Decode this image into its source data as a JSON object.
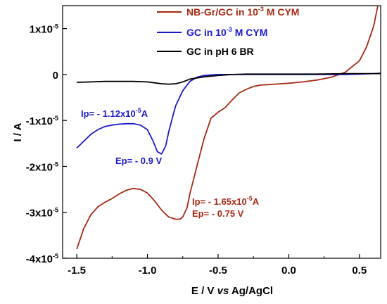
{
  "chart_data": {
    "type": "line",
    "xlabel": {
      "pre": "E / V ",
      "italic": "vs",
      "post": " Ag/AgCl"
    },
    "ylabel": "I / A",
    "xlim": [
      -1.6,
      0.65
    ],
    "ylim": [
      -4e-05,
      1.5e-05
    ],
    "x_ticks": [
      {
        "value": -1.5,
        "label": "-1.5"
      },
      {
        "value": -1.0,
        "label": "-1.0"
      },
      {
        "value": -0.5,
        "label": "-0.5"
      },
      {
        "value": 0.0,
        "label": "0.0"
      },
      {
        "value": 0.5,
        "label": "0.5"
      }
    ],
    "y_ticks": [
      {
        "value": 1e-05,
        "mant": "1x10",
        "exp": "-5"
      },
      {
        "value": 0,
        "mant": "0",
        "exp": ""
      },
      {
        "value": -1e-05,
        "mant": "-1x10",
        "exp": "-5"
      },
      {
        "value": -2e-05,
        "mant": "-2x10",
        "exp": "-5"
      },
      {
        "value": -3e-05,
        "mant": "-3x10",
        "exp": "-5"
      },
      {
        "value": -4e-05,
        "mant": "-4x10",
        "exp": "-5"
      }
    ],
    "grid": false,
    "legend_position": "top-right",
    "series": [
      {
        "name": {
          "pre": "NB-Gr/GC in 10",
          "sup": "-3",
          "post": " M CYM"
        },
        "color": "#a52a14",
        "x": [
          -1.5,
          -1.45,
          -1.4,
          -1.35,
          -1.3,
          -1.25,
          -1.2,
          -1.15,
          -1.1,
          -1.05,
          -1.0,
          -0.95,
          -0.9,
          -0.85,
          -0.8,
          -0.77,
          -0.75,
          -0.72,
          -0.7,
          -0.65,
          -0.6,
          -0.55,
          -0.5,
          -0.45,
          -0.4,
          -0.35,
          -0.3,
          -0.25,
          -0.2,
          -0.15,
          -0.1,
          0.0,
          0.1,
          0.2,
          0.3,
          0.4,
          0.5,
          0.55,
          0.6,
          0.63
        ],
        "y": [
          -3.8e-05,
          -3.35e-05,
          -3.05e-05,
          -2.88e-05,
          -2.78e-05,
          -2.7e-05,
          -2.6e-05,
          -2.52e-05,
          -2.48e-05,
          -2.5e-05,
          -2.58e-05,
          -2.75e-05,
          -2.95e-05,
          -3.1e-05,
          -3.15e-05,
          -3.15e-05,
          -3.1e-05,
          -2.9e-05,
          -2.6e-05,
          -2e-05,
          -1.4e-05,
          -9.5e-06,
          -8.2e-06,
          -7.2e-06,
          -5.5e-06,
          -4e-06,
          -3.2e-06,
          -2.6e-06,
          -2.3e-06,
          -2.2e-06,
          -2.1e-06,
          -1.9e-06,
          -1.6e-06,
          -1.2e-06,
          -6e-07,
          5e-07,
          3e-06,
          6e-06,
          1.05e-05,
          1.5e-05
        ]
      },
      {
        "name": {
          "pre": "GC in 10",
          "sup": "-3",
          "post": " M CYM"
        },
        "color": "#1a1acc",
        "x": [
          -1.5,
          -1.45,
          -1.4,
          -1.35,
          -1.3,
          -1.25,
          -1.2,
          -1.15,
          -1.1,
          -1.05,
          -1.0,
          -0.96,
          -0.93,
          -0.9,
          -0.87,
          -0.85,
          -0.82,
          -0.8,
          -0.75,
          -0.7,
          -0.65,
          -0.6,
          -0.5,
          -0.4,
          -0.3,
          -0.2,
          -0.1,
          0.0,
          0.2,
          0.4,
          0.6,
          0.65
        ],
        "y": [
          -1.6e-05,
          -1.45e-05,
          -1.3e-05,
          -1.2e-05,
          -1.13e-05,
          -1.1e-05,
          -1.08e-05,
          -1.07e-05,
          -1.07e-05,
          -1.1e-05,
          -1.2e-05,
          -1.45e-05,
          -1.68e-05,
          -1.73e-05,
          -1.55e-05,
          -1.25e-05,
          -9e-06,
          -6.8e-06,
          -3.5e-06,
          -1.5e-06,
          -6e-07,
          -2e-07,
          0.0,
          0.0,
          0.0,
          0.0,
          0.0,
          0.0,
          0.0,
          0.0,
          2e-07,
          3e-07
        ]
      },
      {
        "name": {
          "pre": "GC in pH 6 BR",
          "sup": "",
          "post": ""
        },
        "color": "#000000",
        "x": [
          -1.5,
          -1.4,
          -1.3,
          -1.2,
          -1.1,
          -1.0,
          -0.95,
          -0.9,
          -0.85,
          -0.8,
          -0.75,
          -0.7,
          -0.6,
          -0.5,
          -0.4,
          -0.3,
          -0.2,
          -0.1,
          0.0,
          0.2,
          0.4,
          0.6,
          0.65
        ],
        "y": [
          -1.7e-06,
          -1.6e-06,
          -1.5e-06,
          -1.5e-06,
          -1.5e-06,
          -1.6e-06,
          -1.8e-06,
          -2e-06,
          -2.1e-06,
          -2e-06,
          -1.6e-06,
          -1e-06,
          -5e-07,
          -2e-07,
          0.0,
          1e-07,
          1e-07,
          1e-07,
          1e-07,
          1e-07,
          2e-07,
          2e-07,
          2e-07
        ]
      }
    ],
    "annotations": [
      {
        "label": "Ip= - 1.12x10",
        "sup": "-5",
        "suffix": "A",
        "color": "#1a1acc"
      },
      {
        "label": "Ep= - 0.9 V",
        "sup": "",
        "suffix": "",
        "color": "#1a1acc"
      },
      {
        "label": "Ip= - 1.65x10",
        "sup": "-5",
        "suffix": "A",
        "color": "#a52a14"
      },
      {
        "label": "Ep= - 0.75 V",
        "sup": "",
        "suffix": "",
        "color": "#a52a14"
      }
    ]
  }
}
